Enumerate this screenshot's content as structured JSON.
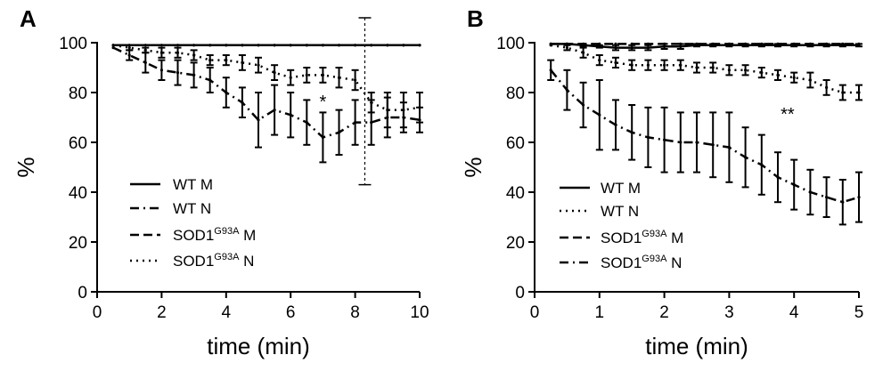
{
  "chart_data": [
    {
      "panel": "A",
      "type": "line",
      "xlabel": "time (min)",
      "ylabel": "%",
      "xlim": [
        0,
        10
      ],
      "ylim": [
        0,
        100
      ],
      "xticks": [
        0,
        2,
        4,
        6,
        8,
        10
      ],
      "yticks": [
        0,
        20,
        40,
        60,
        80,
        100
      ],
      "annotation": {
        "text": "*",
        "x": 7.0,
        "y": 74
      },
      "vertical_marker": {
        "x": 8.3,
        "low": 43,
        "high": 110
      },
      "legend": [
        {
          "base": "WT",
          "sup": "",
          "tail": " M",
          "dash": "solid"
        },
        {
          "base": "WT",
          "sup": "",
          "tail": " N",
          "dash": "dash-dot"
        },
        {
          "base": "SOD1",
          "sup": "G93A",
          "tail": " M",
          "dash": "dashed"
        },
        {
          "base": "SOD1",
          "sup": "G93A",
          "tail": " N",
          "dash": "dotted"
        }
      ],
      "series": [
        {
          "name": "WT M",
          "dash": "solid",
          "x": [
            0.5,
            1,
            1.5,
            2,
            2.5,
            3,
            3.5,
            4,
            4.5,
            5,
            5.5,
            6,
            6.5,
            7,
            7.5,
            8,
            8.5,
            9,
            9.5,
            10
          ],
          "y": [
            99,
            99,
            99,
            99,
            99,
            99,
            99,
            99,
            99,
            99,
            99,
            99,
            99,
            99,
            99,
            99,
            99,
            99,
            99,
            99
          ],
          "err": [
            0,
            0,
            0,
            0,
            0,
            0,
            0,
            0,
            0,
            0,
            0,
            0,
            0,
            0,
            0,
            0,
            0,
            0,
            0,
            0
          ]
        },
        {
          "name": "WT N",
          "dash": "dash-dot",
          "x": [
            0.5,
            1,
            1.5,
            2,
            2.5,
            3,
            3.5,
            4,
            4.5,
            5,
            5.5,
            6,
            6.5,
            7,
            7.5,
            8,
            8.5,
            9,
            9.5,
            10
          ],
          "y": [
            98,
            95,
            92,
            89,
            88,
            87,
            85,
            80,
            76,
            69,
            73,
            71,
            68,
            62,
            64,
            68,
            68,
            70,
            70,
            69
          ],
          "err": [
            0,
            2,
            4,
            4,
            5,
            5,
            5,
            6,
            6,
            11,
            10,
            9,
            9,
            10,
            9,
            9,
            9,
            8,
            6,
            5
          ]
        },
        {
          "name": "SOD1G93A M",
          "dash": "dashed",
          "x": [
            0.5,
            1,
            1.5,
            2,
            2.5,
            3,
            3.5,
            4,
            4.5,
            5,
            5.5,
            6,
            6.5,
            7,
            7.5,
            8,
            8.5,
            9,
            9.5,
            10
          ],
          "y": [
            99,
            99,
            99,
            99,
            99,
            99,
            99,
            99,
            99,
            99,
            99,
            99,
            99,
            99,
            99,
            99,
            99,
            99,
            99,
            99
          ],
          "err": [
            0,
            0,
            0,
            0,
            0,
            0,
            0,
            0,
            0,
            0,
            0,
            0,
            0,
            0,
            0,
            0,
            0,
            0,
            0,
            0
          ]
        },
        {
          "name": "SOD1G93A N",
          "dash": "dotted",
          "x": [
            0.5,
            1,
            1.5,
            2,
            2.5,
            3,
            3.5,
            4,
            4.5,
            5,
            5.5,
            6,
            6.5,
            7,
            7.5,
            8,
            8.5,
            9,
            9.5,
            10
          ],
          "y": [
            99,
            98,
            97,
            96,
            96,
            95,
            93,
            93,
            92,
            91,
            88,
            86,
            87,
            87,
            86,
            85,
            76,
            73,
            73,
            74
          ],
          "err": [
            0,
            1,
            1,
            2,
            2,
            2,
            2,
            2,
            3,
            3,
            3,
            3,
            3,
            3,
            4,
            4,
            4,
            7,
            7,
            6
          ]
        }
      ]
    },
    {
      "panel": "B",
      "type": "line",
      "xlabel": "time (min)",
      "ylabel": "%",
      "xlim": [
        0,
        5
      ],
      "ylim": [
        0,
        100
      ],
      "xticks": [
        0,
        1,
        2,
        3,
        4,
        5
      ],
      "yticks": [
        0,
        20,
        40,
        60,
        80,
        100
      ],
      "annotation": {
        "text": "**",
        "x": 3.9,
        "y": 69
      },
      "legend": [
        {
          "base": "WT",
          "sup": "",
          "tail": " M",
          "dash": "solid"
        },
        {
          "base": "WT",
          "sup": "",
          "tail": " N",
          "dash": "dotted"
        },
        {
          "base": "SOD1",
          "sup": "G93A",
          "tail": " M",
          "dash": "dashed"
        },
        {
          "base": "SOD1",
          "sup": "G93A",
          "tail": " N",
          "dash": "dash-dot"
        }
      ],
      "series": [
        {
          "name": "WT M",
          "dash": "solid",
          "x": [
            0.25,
            0.5,
            0.75,
            1,
            1.25,
            1.5,
            1.75,
            2,
            2.25,
            2.5,
            2.75,
            3,
            3.25,
            3.5,
            3.75,
            4,
            4.25,
            4.5,
            4.75,
            5
          ],
          "y": [
            99.5,
            99.5,
            99,
            98.5,
            98,
            98,
            98,
            98.5,
            98.5,
            99,
            99,
            99,
            99,
            99,
            99,
            99,
            99,
            99,
            99,
            99
          ],
          "err": [
            0,
            0,
            0.5,
            0.5,
            1,
            1,
            1,
            1,
            1,
            0.5,
            0.5,
            0.5,
            0.5,
            0.5,
            0.5,
            0.5,
            0.5,
            0.5,
            0.5,
            0.5
          ]
        },
        {
          "name": "WT N",
          "dash": "dotted",
          "x": [
            0.25,
            0.5,
            0.75,
            1,
            1.25,
            1.5,
            1.75,
            2,
            2.25,
            2.5,
            2.75,
            3,
            3.25,
            3.5,
            3.75,
            4,
            4.25,
            4.5,
            4.75,
            5
          ],
          "y": [
            99,
            98,
            96,
            93,
            92,
            91,
            91,
            91,
            91,
            90,
            90,
            89,
            89,
            88,
            87,
            86,
            85,
            82,
            80,
            80
          ],
          "err": [
            0,
            1,
            2,
            2,
            2,
            2,
            2,
            2,
            2,
            2,
            2,
            2,
            2,
            2,
            2,
            2,
            3,
            3,
            3,
            3
          ]
        },
        {
          "name": "SOD1G93A M",
          "dash": "dashed",
          "x": [
            0.25,
            0.5,
            0.75,
            1,
            1.25,
            1.5,
            1.75,
            2,
            2.25,
            2.5,
            2.75,
            3,
            3.25,
            3.5,
            3.75,
            4,
            4.25,
            4.5,
            4.75,
            5
          ],
          "y": [
            99.5,
            99.5,
            99.5,
            99.5,
            99.5,
            99.5,
            99.5,
            99.5,
            99.5,
            99.5,
            99.5,
            99.5,
            99.5,
            99.5,
            99.5,
            99.5,
            99.5,
            99.5,
            99.5,
            99.5
          ],
          "err": [
            0,
            0,
            0,
            0,
            0,
            0,
            0,
            0,
            0,
            0,
            0,
            0,
            0,
            0,
            0,
            0,
            0,
            0,
            0,
            0
          ]
        },
        {
          "name": "SOD1G93A N",
          "dash": "dash-dot",
          "x": [
            0.25,
            0.5,
            0.75,
            1,
            1.25,
            1.5,
            1.75,
            2,
            2.25,
            2.5,
            2.75,
            3,
            3.25,
            3.5,
            3.75,
            4,
            4.25,
            4.5,
            4.75,
            5
          ],
          "y": [
            89,
            81,
            75,
            71,
            67,
            64,
            62,
            61,
            60,
            60,
            59,
            58,
            54,
            51,
            46,
            43,
            40,
            38,
            36,
            38
          ],
          "err": [
            4,
            8,
            9,
            14,
            10,
            11,
            12,
            13,
            12,
            12,
            13,
            14,
            12,
            12,
            10,
            10,
            9,
            8,
            9,
            10
          ]
        }
      ]
    }
  ]
}
